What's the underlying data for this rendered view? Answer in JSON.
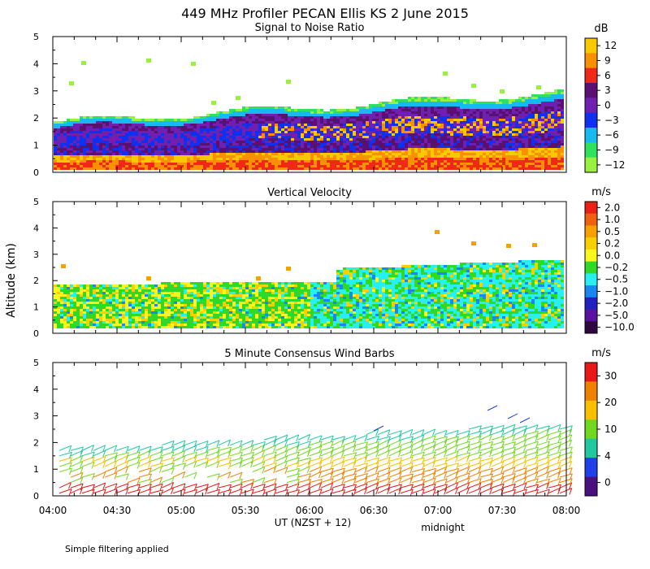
{
  "figure": {
    "title": "449 MHz Profiler PECAN Ellis KS  2 June 2015",
    "ylabel": "Altitude (km)",
    "xlabel": "UT  (NZST + 12)",
    "local_label": "midnight",
    "footnote": "Simple filtering applied"
  },
  "chart_data": [
    {
      "type": "heatmap",
      "title": "Signal to Noise Ratio",
      "unit": "dB",
      "ylim": [
        0,
        5
      ],
      "yticks": [
        "0",
        "1",
        "2",
        "3",
        "4",
        "5"
      ],
      "x_ticks": [
        "04:00",
        "04:30",
        "05:00",
        "05:30",
        "06:00",
        "06:30",
        "07:00",
        "07:30",
        "08:00"
      ],
      "colorbar_labels": [
        "12",
        "9",
        "6",
        "3",
        "0",
        "−3",
        "−6",
        "−9",
        "−12"
      ],
      "colors": [
        "#f8c800",
        "#f89000",
        "#f02818",
        "#5a1070",
        "#7020b0",
        "#1030f0",
        "#18b8f0",
        "#30e060",
        "#98f040"
      ],
      "data_top_km_start": 1.8,
      "data_top_km_end": 2.9
    },
    {
      "type": "heatmap",
      "title": "Vertical Velocity",
      "unit": "m/s",
      "ylim": [
        0,
        5
      ],
      "yticks": [
        "0",
        "1",
        "2",
        "3",
        "4",
        "5"
      ],
      "x_ticks": [
        "04:00",
        "04:30",
        "05:00",
        "05:30",
        "06:00",
        "06:30",
        "07:00",
        "07:30",
        "08:00"
      ],
      "colorbar_labels": [
        "2.0",
        "1.0",
        "0.5",
        "0.2",
        "0.0",
        "−0.2",
        "−0.5",
        "−1.0",
        "−2.0",
        "−5.0",
        "−10.0"
      ],
      "colors": [
        "#e82018",
        "#f06010",
        "#f8a000",
        "#f8d000",
        "#f8f820",
        "#30d828",
        "#28f0f0",
        "#1888f0",
        "#2020c0",
        "#5a10a0",
        "#300840"
      ],
      "data_top_km_start": 1.8,
      "data_top_km_end": 2.9
    },
    {
      "type": "scatter",
      "title": "5 Minute Consensus Wind Barbs",
      "unit": "m/s",
      "ylim": [
        0,
        5
      ],
      "yticks": [
        "0",
        "1",
        "2",
        "3",
        "4",
        "5"
      ],
      "x_ticks": [
        "04:00",
        "04:30",
        "05:00",
        "05:30",
        "06:00",
        "06:30",
        "07:00",
        "07:30",
        "08:00"
      ],
      "colorbar_labels": [
        "30",
        "20",
        "10",
        "4",
        "0"
      ],
      "colors": [
        "#e81818",
        "#f08000",
        "#f8c000",
        "#70d820",
        "#20c8a0",
        "#2040e8",
        "#4a1080"
      ]
    }
  ]
}
